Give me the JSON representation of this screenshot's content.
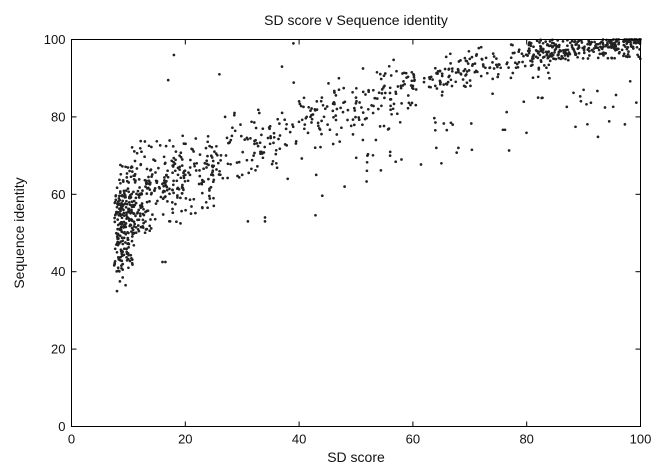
{
  "chart_data": {
    "type": "scatter",
    "title": "SD score v Sequence identity",
    "xlabel": "SD score",
    "ylabel": "Sequence identity",
    "xlim": [
      0,
      100
    ],
    "ylim": [
      0,
      100
    ],
    "xticks": [
      0,
      20,
      40,
      60,
      80,
      100
    ],
    "yticks": [
      0,
      20,
      40,
      60,
      80,
      100
    ],
    "grid": false,
    "marker_color": "#222222",
    "point_count": 1280,
    "density_clusters": [
      {
        "xmin": 7.5,
        "xmax": 11,
        "ymin": 40,
        "ymax": 60,
        "count": 160
      },
      {
        "xmin": 8,
        "xmax": 14,
        "ymin": 50,
        "ymax": 68,
        "count": 110
      },
      {
        "xmin": 10,
        "xmax": 20,
        "ymin": 52,
        "ymax": 74,
        "count": 80
      },
      {
        "xmin": 15,
        "xmax": 25,
        "ymin": 55,
        "ymax": 75,
        "count": 60
      },
      {
        "xmin": 80,
        "xmax": 100,
        "ymin": 95,
        "ymax": 100,
        "count": 160
      }
    ],
    "points": [
      [
        8,
        35
      ],
      [
        8.5,
        37.5
      ],
      [
        9,
        38.5
      ],
      [
        9.5,
        36.5
      ],
      [
        10,
        41
      ],
      [
        8,
        45
      ],
      [
        9,
        48
      ],
      [
        10,
        50
      ],
      [
        11,
        55
      ],
      [
        12,
        60
      ],
      [
        13,
        62
      ],
      [
        14,
        60
      ],
      [
        15,
        63
      ],
      [
        16,
        42.5
      ],
      [
        16.5,
        42.5
      ],
      [
        17,
        89.5
      ],
      [
        18,
        96
      ],
      [
        19,
        70
      ],
      [
        20,
        65
      ],
      [
        21,
        55
      ],
      [
        22,
        68
      ],
      [
        24,
        75
      ],
      [
        25,
        57
      ],
      [
        26,
        91
      ],
      [
        27,
        80
      ],
      [
        28,
        74
      ],
      [
        30,
        65
      ],
      [
        31,
        53
      ],
      [
        32,
        70
      ],
      [
        33,
        81
      ],
      [
        34,
        54
      ],
      [
        34,
        53
      ],
      [
        35,
        75
      ],
      [
        36,
        68
      ],
      [
        37,
        93
      ],
      [
        38,
        64
      ],
      [
        39,
        99
      ],
      [
        40,
        84
      ],
      [
        41,
        78
      ],
      [
        42,
        80
      ],
      [
        43,
        65
      ],
      [
        44,
        85
      ],
      [
        45,
        78
      ],
      [
        46,
        73
      ],
      [
        47,
        90
      ],
      [
        48,
        62
      ],
      [
        50,
        85
      ],
      [
        52,
        70
      ],
      [
        53,
        81
      ],
      [
        55,
        88
      ],
      [
        56,
        70
      ],
      [
        58,
        69
      ],
      [
        60,
        88
      ],
      [
        62,
        90
      ],
      [
        65,
        68
      ],
      [
        67,
        78
      ],
      [
        68,
        72
      ],
      [
        69,
        88
      ],
      [
        70,
        95
      ],
      [
        72,
        98
      ],
      [
        74,
        86
      ],
      [
        75,
        91
      ],
      [
        78,
        94
      ],
      [
        80,
        96
      ],
      [
        82,
        85
      ],
      [
        84,
        90
      ],
      [
        86,
        95
      ],
      [
        88,
        98
      ],
      [
        90,
        87
      ],
      [
        91,
        97
      ],
      [
        93,
        98
      ],
      [
        95,
        99
      ],
      [
        97,
        99.5
      ],
      [
        98,
        100
      ],
      [
        99,
        100
      ],
      [
        100,
        100
      ]
    ]
  }
}
